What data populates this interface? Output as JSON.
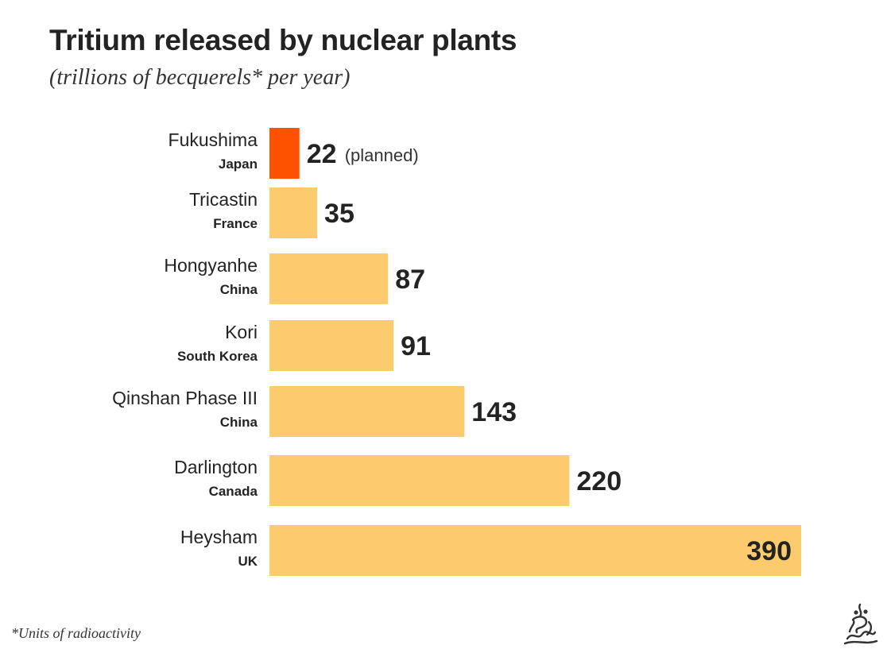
{
  "header": {
    "title": "Tritium released by nuclear plants",
    "subtitle": "(trillions of becquerels* per year)"
  },
  "footnote": "*Units of radioactivity",
  "logo": {
    "icon": "broadcaster-calligraphy-logo-icon"
  },
  "colors": {
    "highlight_bar": "#FF5200",
    "bar": "#FCCB6E",
    "text": "#232323"
  },
  "chart_data": {
    "type": "bar",
    "orientation": "horizontal",
    "title": "Tritium released by nuclear plants",
    "subtitle": "(trillions of becquerels* per year)",
    "categories": [
      "Fukushima",
      "Tricastin",
      "Hongyanhe",
      "Kori",
      "Qinshan Phase III",
      "Darlington",
      "Heysham"
    ],
    "countries": [
      "Japan",
      "France",
      "China",
      "South Korea",
      "China",
      "Canada",
      "UK"
    ],
    "values": [
      22,
      35,
      87,
      91,
      143,
      220,
      390
    ],
    "value_labels": [
      "22",
      "35",
      "87",
      "91",
      "143",
      "220",
      "390"
    ],
    "annotations": [
      "(planned)",
      "",
      "",
      "",
      "",
      "",
      ""
    ],
    "highlight_index": 0,
    "xlim": [
      0,
      390
    ],
    "grid": false,
    "legend": "none"
  }
}
